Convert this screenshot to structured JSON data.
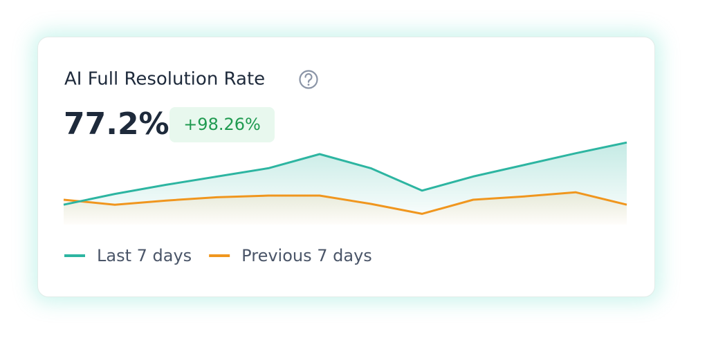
{
  "chart_data": {
    "type": "line",
    "title": "AI Full Resolution Rate",
    "metric": "77.2%",
    "change": "+98.26%",
    "categories": [
      null,
      null,
      null,
      null,
      null,
      null,
      null,
      null,
      null,
      null,
      null,
      null
    ],
    "ylim": [
      0,
      100
    ],
    "series": [
      {
        "name": "Last 7 days",
        "color": "#2db5a1",
        "values": [
          24,
          37,
          48,
          58,
          68,
          85,
          68,
          41,
          58,
          72,
          86,
          99
        ]
      },
      {
        "name": "Previous 7 days",
        "color": "#f0961e",
        "values": [
          30,
          24,
          29,
          33,
          35,
          35,
          25,
          13,
          30,
          34,
          39,
          24
        ]
      }
    ]
  }
}
